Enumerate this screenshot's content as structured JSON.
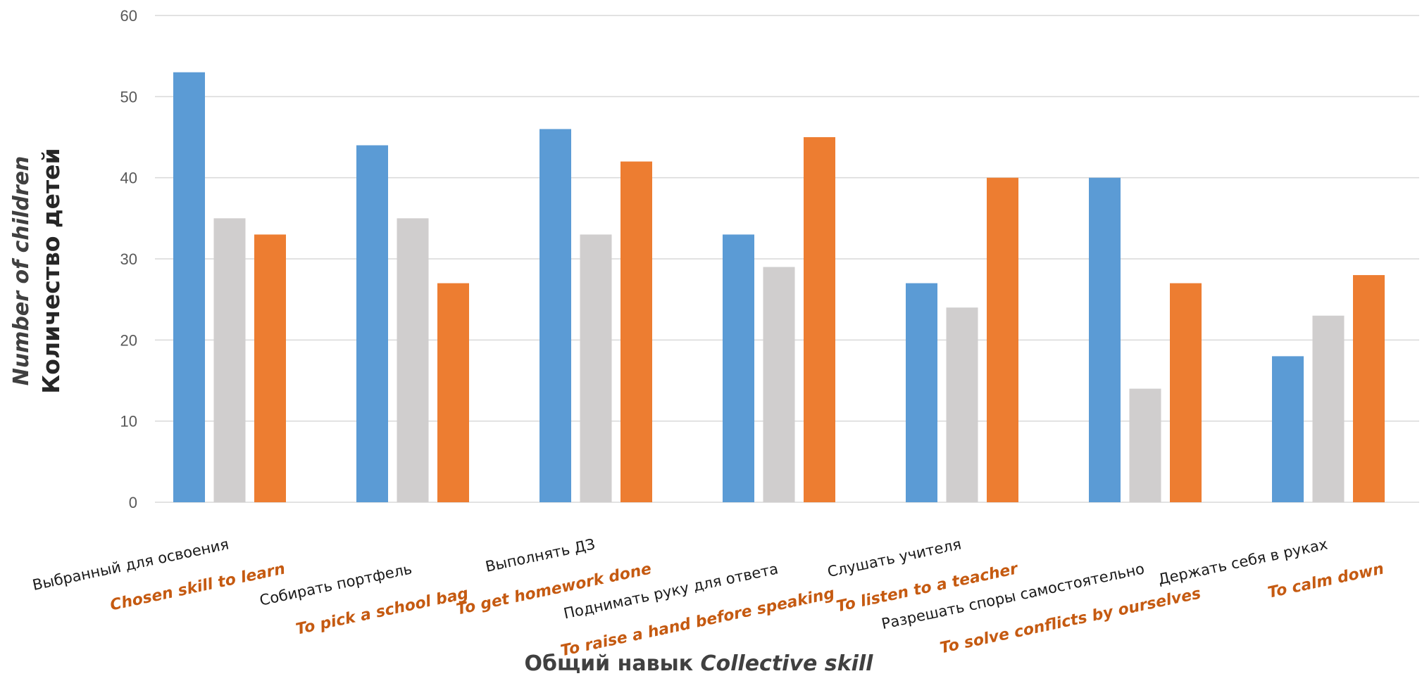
{
  "chart_data": {
    "type": "bar",
    "categories": [
      {
        "ru": "Выбранный для освоения",
        "en": "Chosen skill to learn"
      },
      {
        "ru": "Собирать портфель",
        "en": "To pick a school bag"
      },
      {
        "ru": "Выполнять ДЗ",
        "en": "To get homework done"
      },
      {
        "ru": "Поднимать руку для ответа",
        "en": "To raise a hand before speaking"
      },
      {
        "ru": "Слушать учителя",
        "en": "To listen to a teacher"
      },
      {
        "ru": "Разрешать споры самостоятельно",
        "en": "To solve conflicts by ourselves"
      },
      {
        "ru": "Держать себя в руках",
        "en": "To calm down"
      }
    ],
    "series": [
      {
        "values": [
          53,
          44,
          46,
          33,
          27,
          40,
          18
        ],
        "color": "#5b9bd5"
      },
      {
        "values": [
          35,
          35,
          33,
          29,
          24,
          14,
          23
        ],
        "color": "#d0cece"
      },
      {
        "values": [
          33,
          27,
          42,
          45,
          40,
          27,
          28
        ],
        "color": "#ed7d31"
      }
    ],
    "ylim": [
      0,
      60
    ],
    "yticks": [
      0,
      10,
      20,
      30,
      40,
      50,
      60
    ],
    "ylabel_en": "Number of children",
    "ylabel_ru": "Количество детей",
    "xlabel_ru": "Общий навык",
    "xlabel_en": "Collective skill",
    "grid": true,
    "legend": "none"
  }
}
